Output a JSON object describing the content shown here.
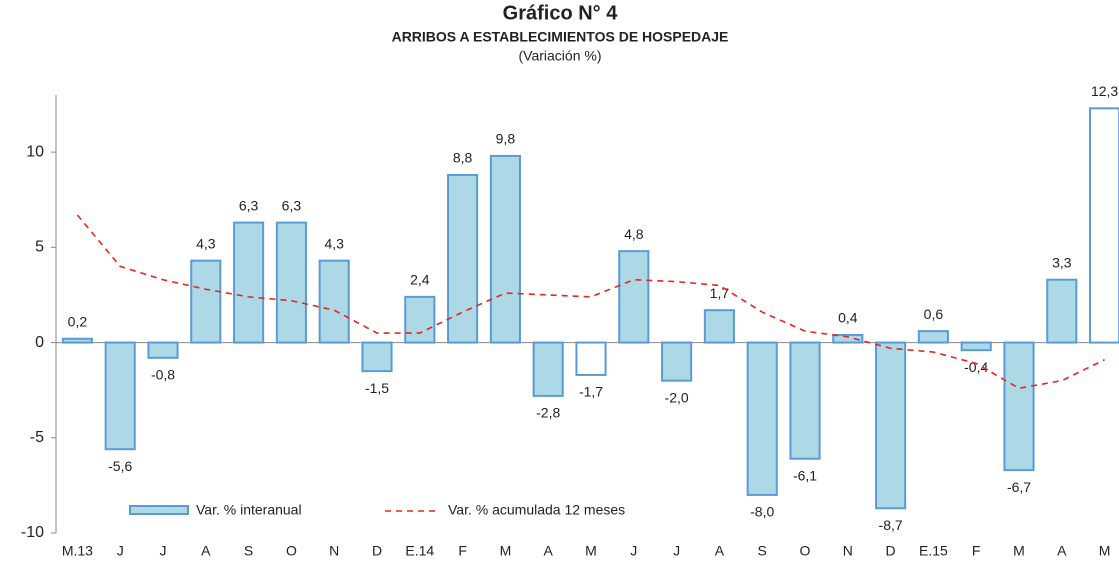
{
  "chart_data": {
    "type": "bar_line",
    "title": "Gráfico N° 4",
    "subtitle": "ARRIBOS A ESTABLECIMIENTOS DE HOSPEDAJE",
    "unit_label": "(Variación %)",
    "categories": [
      "M.13",
      "J",
      "J",
      "A",
      "S",
      "O",
      "N",
      "D",
      "E.14",
      "F",
      "M",
      "A",
      "M",
      "J",
      "J",
      "A",
      "S",
      "O",
      "N",
      "D",
      "E.15",
      "F",
      "M",
      "A",
      "M"
    ],
    "series": [
      {
        "name": "Var. % interanual",
        "kind": "bar",
        "color": "#add8e6",
        "edge_color": "#5b9bd5",
        "bar_colors": [
          "#add8e6",
          "#add8e6",
          "#add8e6",
          "#add8e6",
          "#add8e6",
          "#add8e6",
          "#add8e6",
          "#add8e6",
          "#add8e6",
          "#add8e6",
          "#add8e6",
          "#add8e6",
          "#ffffff",
          "#add8e6",
          "#add8e6",
          "#add8e6",
          "#add8e6",
          "#add8e6",
          "#add8e6",
          "#add8e6",
          "#add8e6",
          "#add8e6",
          "#add8e6",
          "#add8e6",
          "#ffffff"
        ],
        "values": [
          0.2,
          -5.6,
          -0.8,
          4.3,
          6.3,
          6.3,
          4.3,
          -1.5,
          2.4,
          8.8,
          9.8,
          -2.8,
          -1.7,
          4.8,
          -2.0,
          1.7,
          -8.0,
          -6.1,
          0.4,
          -8.7,
          0.6,
          -0.4,
          -6.7,
          3.3,
          12.3
        ],
        "value_labels": [
          "0,2",
          "-5,6",
          "-0,8",
          "4,3",
          "6,3",
          "6,3",
          "4,3",
          "-1,5",
          "2,4",
          "8,8",
          "9,8",
          "-2,8",
          "-1,7",
          "4,8",
          "-2,0",
          "1,7",
          "-8,0",
          "-6,1",
          "0,4",
          "-8,7",
          "0,6",
          "-0,4",
          "-6,7",
          "3,3",
          "12,3"
        ]
      },
      {
        "name": "Var. % acumulada 12 meses",
        "kind": "line",
        "color": "#e8261e",
        "dashed": true,
        "values": [
          6.7,
          4.0,
          3.3,
          2.8,
          2.4,
          2.2,
          1.7,
          0.5,
          0.5,
          1.6,
          2.6,
          2.5,
          2.4,
          3.3,
          3.2,
          3.0,
          1.6,
          0.6,
          0.3,
          -0.3,
          -0.5,
          -1.1,
          -2.4,
          -2.0,
          -0.9
        ]
      }
    ],
    "ylim": [
      -10,
      13
    ],
    "yticks": [
      -10,
      -5,
      0,
      5,
      10
    ]
  }
}
